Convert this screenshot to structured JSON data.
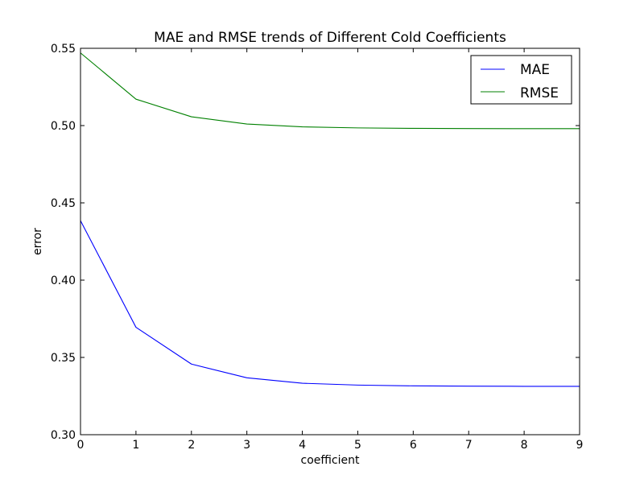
{
  "chart_data": {
    "type": "line",
    "title": "MAE and RMSE trends of Different Cold Coefficients",
    "xlabel": "coefficient",
    "ylabel": "error",
    "x": [
      0,
      1,
      2,
      3,
      4,
      5,
      6,
      7,
      8,
      9
    ],
    "xlim": [
      0,
      9
    ],
    "ylim": [
      0.3,
      0.55
    ],
    "xticks": [
      "0",
      "1",
      "2",
      "3",
      "4",
      "5",
      "6",
      "7",
      "8",
      "9"
    ],
    "yticks": [
      "0.30",
      "0.35",
      "0.40",
      "0.45",
      "0.50",
      "0.55"
    ],
    "grid": false,
    "legend_position": "top-right",
    "series": [
      {
        "name": "MAE",
        "color": "#0000ff",
        "values": [
          0.4385,
          0.3695,
          0.3457,
          0.3368,
          0.3333,
          0.3321,
          0.3316,
          0.3314,
          0.3313,
          0.3313
        ]
      },
      {
        "name": "RMSE",
        "color": "#008000",
        "values": [
          0.547,
          0.5171,
          0.5057,
          0.501,
          0.4992,
          0.4985,
          0.4982,
          0.4981,
          0.498,
          0.498
        ]
      }
    ]
  }
}
